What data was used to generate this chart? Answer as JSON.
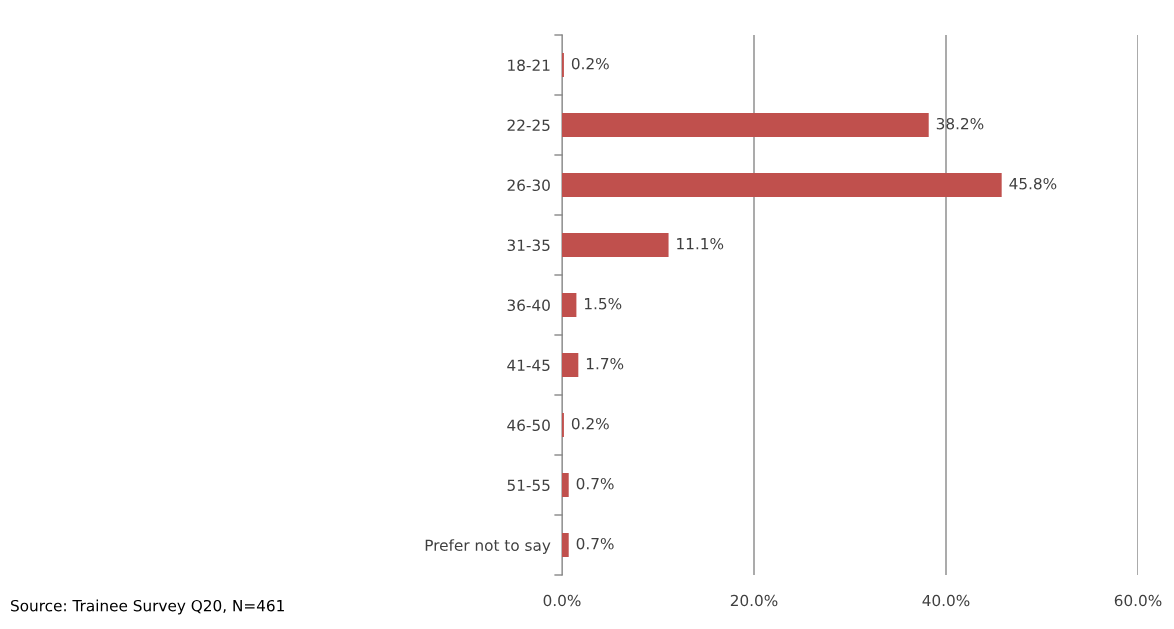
{
  "chart_data": {
    "type": "bar",
    "orientation": "horizontal",
    "categories": [
      "18-21",
      "22-25",
      "26-30",
      "31-35",
      "36-40",
      "41-45",
      "46-50",
      "51-55",
      "Prefer not to say"
    ],
    "values": [
      0.2,
      38.2,
      45.8,
      11.1,
      1.5,
      1.7,
      0.2,
      0.7,
      0.7
    ],
    "value_labels": [
      "0.2%",
      "38.2%",
      "45.8%",
      "11.1%",
      "1.5%",
      "1.7%",
      "0.2%",
      "0.7%",
      "0.7%"
    ],
    "color": "#c0504d",
    "xlim": [
      0,
      60
    ],
    "xticks": [
      {
        "value": 0,
        "label": "0.0%"
      },
      {
        "value": 20,
        "label": "20.0%"
      },
      {
        "value": 40,
        "label": "40.0%"
      },
      {
        "value": 60,
        "label": "60.0%"
      }
    ],
    "grid": "x",
    "legend": false,
    "annotations": [
      "Source: Trainee Survey Q20, N=461"
    ]
  }
}
